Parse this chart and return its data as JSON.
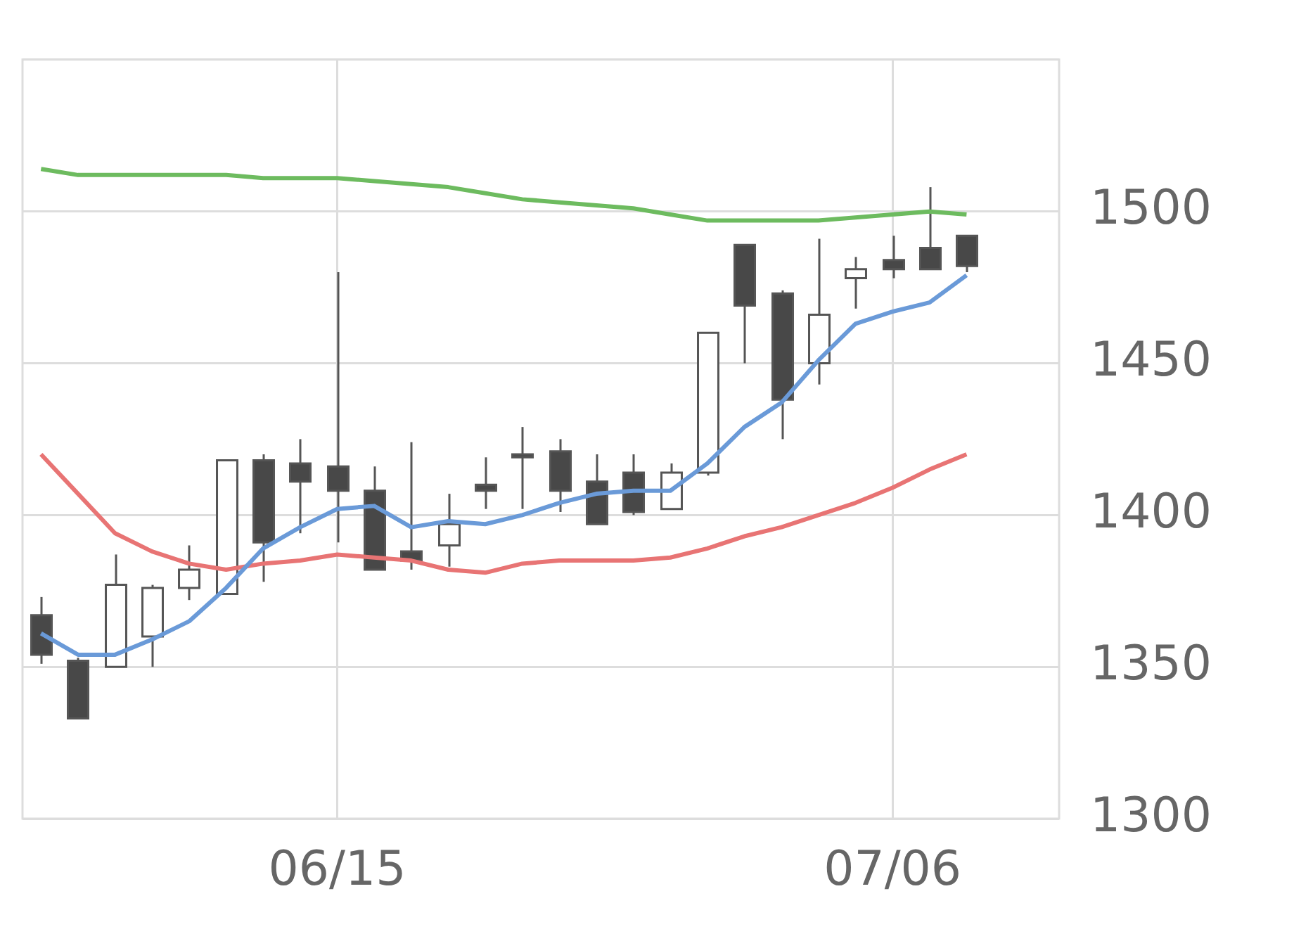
{
  "chart_data": {
    "type": "candlestick",
    "categories": [
      null,
      null,
      null,
      null,
      null,
      null,
      null,
      null,
      "06/15",
      null,
      null,
      null,
      null,
      null,
      null,
      null,
      null,
      null,
      null,
      null,
      null,
      null,
      null,
      "07/06",
      null,
      null,
      null,
      null
    ],
    "ohlc": [
      [
        1367,
        1373,
        1351,
        1354
      ],
      [
        1352,
        1353,
        1333,
        1333
      ],
      [
        1350,
        1387,
        1350,
        1377
      ],
      [
        1360,
        1377,
        1350,
        1376
      ],
      [
        1376,
        1390,
        1372,
        1382
      ],
      [
        1374,
        1418,
        1374,
        1418
      ],
      [
        1418,
        1420,
        1378,
        1391
      ],
      [
        1417,
        1425,
        1394,
        1411
      ],
      [
        1416,
        1480,
        1391,
        1408
      ],
      [
        1408,
        1416,
        1382,
        1382
      ],
      [
        1388,
        1424,
        1382,
        1385
      ],
      [
        1390,
        1407,
        1383,
        1397
      ],
      [
        1410,
        1419,
        1402,
        1408
      ],
      [
        1420,
        1429,
        1402,
        1419
      ],
      [
        1421,
        1425,
        1401,
        1408
      ],
      [
        1411,
        1420,
        1397,
        1397
      ],
      [
        1414,
        1420,
        1400,
        1401
      ],
      [
        1402,
        1417,
        1402,
        1414
      ],
      [
        1414,
        1460,
        1413,
        1460
      ],
      [
        1489,
        1489,
        1450,
        1469
      ],
      [
        1473,
        1474,
        1425,
        1438
      ],
      [
        1450,
        1491,
        1443,
        1466
      ],
      [
        1478,
        1485,
        1468,
        1481
      ],
      [
        1484,
        1492,
        1478,
        1481
      ],
      [
        1488,
        1508,
        1481,
        1481
      ],
      [
        1492,
        1492,
        1480,
        1482
      ],
      null,
      null
    ],
    "colors": [
      "#484848",
      "#484848",
      "#ffffff",
      "#ffffff",
      "#ffffff",
      "#ffffff",
      "#484848",
      "#484848",
      "#484848",
      "#484848",
      "#484848",
      "#ffffff",
      "#484848",
      "#484848",
      "#484848",
      "#484848",
      "#484848",
      "#ffffff",
      "#ffffff",
      "#484848",
      "#484848",
      "#ffffff",
      "#ffffff",
      "#484848",
      "#484848",
      "#484848",
      null,
      null
    ],
    "series": [
      {
        "type": "line",
        "color": "#6a9ad8",
        "values": [
          1361,
          1354,
          1354,
          1359,
          1365,
          1376,
          1389,
          1396,
          1402,
          1403,
          1396,
          1398,
          1397,
          1400,
          1404,
          1407,
          1408,
          1408,
          1417,
          1429,
          1437,
          1451,
          1463,
          1467,
          1470,
          1479,
          null,
          null
        ]
      },
      {
        "type": "line",
        "color": "#e87474",
        "values": [
          1420,
          1407,
          1394,
          1388,
          1384,
          1382,
          1384,
          1385,
          1387,
          1386,
          1385,
          1382,
          1381,
          1384,
          1385,
          1385,
          1385,
          1386,
          1389,
          1393,
          1396,
          1400,
          1404,
          1409,
          1415,
          1420,
          null,
          null
        ]
      },
      {
        "type": "line",
        "color": "#6dbb5f",
        "values": [
          1514,
          1512,
          1512,
          1512,
          1512,
          1512,
          1511,
          1511,
          1511,
          1510,
          1509,
          1508,
          1506,
          1504,
          1503,
          1502,
          1501,
          1499,
          1497,
          1497,
          1497,
          1497,
          1498,
          1499,
          1500,
          1499,
          null,
          null
        ]
      }
    ],
    "ylim": [
      1300,
      1550
    ],
    "yticks": [
      1300,
      1350,
      1400,
      1450,
      1500,
      {
        "value": 1550,
        "label": null
      }
    ],
    "grid": true,
    "legend": false
  }
}
